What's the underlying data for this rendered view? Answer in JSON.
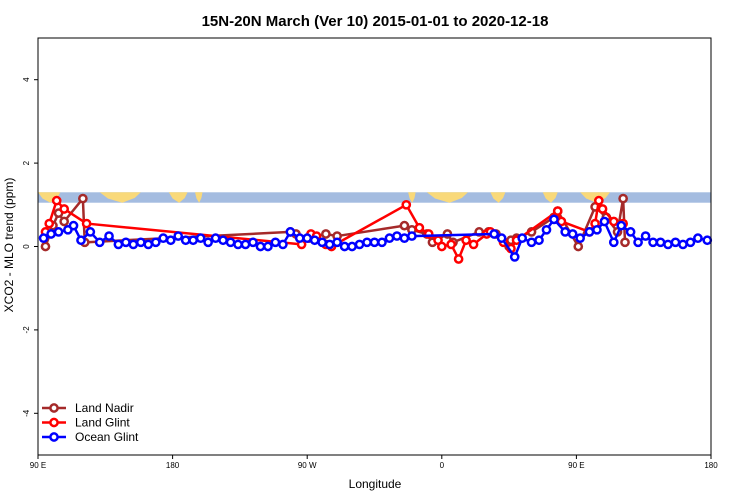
{
  "chart_data": {
    "type": "line",
    "title": "15N-20N March (Ver 10)   2015-01-01 to 2020-12-18",
    "xlabel": "Longitude",
    "ylabel": "XCO2 - MLO trend (ppm)",
    "xlim": [
      0,
      360
    ],
    "ylim": [
      -5,
      5
    ],
    "x_ticks": [
      {
        "value": 0,
        "label": "90 E"
      },
      {
        "value": 72,
        "label": "180"
      },
      {
        "value": 144,
        "label": "90 W"
      },
      {
        "value": 216,
        "label": "0"
      },
      {
        "value": 288,
        "label": "90 E"
      },
      {
        "value": 360,
        "label": "180"
      }
    ],
    "y_ticks": [
      -4,
      -2,
      0,
      2,
      4
    ],
    "legend_position": "bottom-left",
    "grid": false,
    "map_strip": {
      "y_bottom": 1.05,
      "y_top": 1.3,
      "ocean_color": "#a4bce0",
      "land_color": "#f9d97a"
    },
    "series": [
      {
        "name": "Land Nadir",
        "color": "#a52a2a",
        "x": [
          4,
          8,
          11,
          14,
          24,
          25,
          135,
          138,
          145,
          154,
          160,
          196,
          200,
          208,
          211,
          219,
          222,
          236,
          241,
          245,
          252,
          253,
          256,
          264,
          276,
          278,
          289,
          298,
          304,
          310,
          313,
          314
        ],
        "y": [
          0.0,
          0.5,
          0.8,
          0.6,
          1.15,
          0.1,
          0.35,
          0.3,
          0.2,
          0.3,
          0.25,
          0.5,
          0.4,
          0.3,
          0.1,
          0.3,
          0.1,
          0.35,
          0.35,
          0.3,
          0.0,
          0.15,
          0.2,
          0.35,
          0.7,
          0.85,
          0.0,
          0.95,
          0.7,
          0.35,
          1.15,
          0.1
        ]
      },
      {
        "name": "Land Glint",
        "color": "#ff0000",
        "x": [
          4,
          6,
          10,
          14,
          26,
          141,
          146,
          149,
          154,
          157,
          197,
          204,
          209,
          214,
          216,
          221,
          225,
          229,
          233,
          240,
          242,
          249,
          253,
          256,
          278,
          280,
          295,
          298,
          300,
          302,
          308,
          313
        ],
        "y": [
          0.35,
          0.55,
          1.1,
          0.9,
          0.55,
          0.05,
          0.3,
          0.25,
          0.05,
          0.0,
          1.0,
          0.45,
          0.3,
          0.15,
          0.0,
          0.05,
          -0.3,
          0.15,
          0.05,
          0.3,
          0.35,
          0.1,
          -0.05,
          0.15,
          0.85,
          0.6,
          0.35,
          0.55,
          1.1,
          0.9,
          0.6,
          0.55
        ]
      },
      {
        "name": "Ocean Glint",
        "color": "#0000ff",
        "x": [
          3,
          7,
          11,
          16,
          19,
          23,
          28,
          33,
          38,
          43,
          47,
          51,
          55,
          59,
          63,
          67,
          71,
          75,
          79,
          83,
          87,
          91,
          95,
          99,
          103,
          107,
          111,
          115,
          119,
          123,
          127,
          131,
          135,
          140,
          144,
          148,
          152,
          156,
          160,
          164,
          168,
          172,
          176,
          180,
          184,
          188,
          192,
          196,
          200,
          244,
          248,
          255,
          259,
          264,
          268,
          272,
          276,
          282,
          286,
          290,
          295,
          299,
          303,
          308,
          312,
          317,
          321,
          325,
          329,
          333,
          337,
          341,
          345,
          349,
          353,
          358
        ],
        "y": [
          0.2,
          0.3,
          0.35,
          0.4,
          0.5,
          0.15,
          0.35,
          0.1,
          0.25,
          0.05,
          0.1,
          0.05,
          0.1,
          0.05,
          0.1,
          0.2,
          0.15,
          0.25,
          0.15,
          0.15,
          0.2,
          0.1,
          0.2,
          0.15,
          0.1,
          0.05,
          0.05,
          0.1,
          0.0,
          0.0,
          0.1,
          0.05,
          0.35,
          0.2,
          0.2,
          0.15,
          0.1,
          0.05,
          0.1,
          0.0,
          0.0,
          0.05,
          0.1,
          0.1,
          0.1,
          0.2,
          0.25,
          0.2,
          0.25,
          0.3,
          0.2,
          -0.25,
          0.2,
          0.1,
          0.15,
          0.4,
          0.65,
          0.35,
          0.3,
          0.2,
          0.35,
          0.4,
          0.6,
          0.1,
          0.5,
          0.35,
          0.1,
          0.25,
          0.1,
          0.1,
          0.05,
          0.1,
          0.05,
          0.1,
          0.2,
          0.15
        ]
      }
    ]
  }
}
